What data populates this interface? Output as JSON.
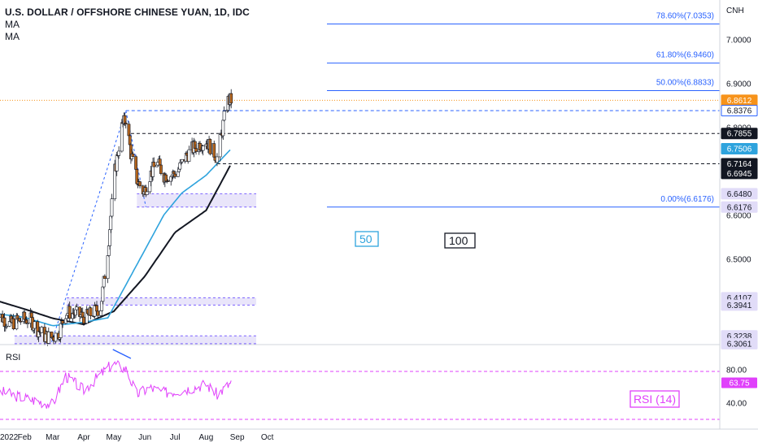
{
  "header": {
    "title": "U.S. DOLLAR / OFFSHORE CHINESE YUAN, 1D, IDC",
    "indicators": [
      "MA",
      "MA"
    ],
    "currency": "CNH"
  },
  "price_axis": {
    "labels": [
      {
        "value": 7.0,
        "text": "7.0000"
      },
      {
        "value": 6.9,
        "text": "6.9000"
      },
      {
        "value": 6.8,
        "text": "6.8000"
      },
      {
        "value": 6.6,
        "text": "6.6000"
      },
      {
        "value": 6.5,
        "text": "6.5000"
      }
    ],
    "badges": [
      {
        "value": 6.8612,
        "text": "6.8612",
        "bg": "#f7931a",
        "fg": "#ffffff",
        "border": "#f7931a"
      },
      {
        "value": 6.8376,
        "text": "6.8376",
        "bg": "#ffffff",
        "fg": "#131722",
        "border": "#2962ff"
      },
      {
        "value": 6.7855,
        "text": "6.7855",
        "bg": "#131722",
        "fg": "#ffffff",
        "border": "#131722"
      },
      {
        "value": 6.7506,
        "text": "6.7506",
        "bg": "#2ea3dd",
        "fg": "#ffffff",
        "border": "#2ea3dd"
      },
      {
        "value": 6.7164,
        "text": "6.7164",
        "bg": "#131722",
        "fg": "#ffffff",
        "border": "#131722"
      },
      {
        "value": 6.6945,
        "text": "6.6945",
        "bg": "#131722",
        "fg": "#ffffff",
        "border": "#131722"
      },
      {
        "value": 6.648,
        "text": "6.6480",
        "bg": "#e1dcf8",
        "fg": "#131722",
        "border": "#e1dcf8"
      },
      {
        "value": 6.6176,
        "text": "6.6176",
        "bg": "#e1dcf8",
        "fg": "#131722",
        "border": "#e1dcf8"
      },
      {
        "value": 6.4107,
        "text": "6.4107",
        "bg": "#e1dcf8",
        "fg": "#131722",
        "border": "#e1dcf8"
      },
      {
        "value": 6.3941,
        "text": "6.3941",
        "bg": "#e1dcf8",
        "fg": "#131722",
        "border": "#e1dcf8"
      },
      {
        "value": 6.3238,
        "text": "6.3238",
        "bg": "#e1dcf8",
        "fg": "#131722",
        "border": "#e1dcf8"
      },
      {
        "value": 6.3061,
        "text": "6.3061",
        "bg": "#e1dcf8",
        "fg": "#131722",
        "border": "#e1dcf8"
      }
    ]
  },
  "time_axis": [
    "2022",
    "Feb",
    "Mar",
    "Apr",
    "May",
    "Jun",
    "Jul",
    "Aug",
    "Sep",
    "Oct"
  ],
  "fib_levels": [
    {
      "value": 7.0353,
      "text": "78.60%(7.0353)"
    },
    {
      "value": 6.946,
      "text": "61.80%(6.9460)"
    },
    {
      "value": 6.8833,
      "text": "50.00%(6.8833)"
    },
    {
      "value": 6.6176,
      "text": "0.00%(6.6176)"
    }
  ],
  "ma_labels": {
    "ma50": "50",
    "ma100": "100"
  },
  "rsi": {
    "panel_label": "RSI",
    "badge": "RSI (14)",
    "current_text": "63.75",
    "axis": [
      {
        "value": 80,
        "text": "80.00"
      },
      {
        "value": 40,
        "text": "40.00"
      }
    ]
  },
  "colors": {
    "up": "#ffffff",
    "down": "#b5651d",
    "wick": "#131722",
    "ma50": "#2ea3dd",
    "ma100": "#131722",
    "fib": "#2962ff",
    "zone": "#e1dcf8",
    "rsi": "#e040fb",
    "last_price": "#f7931a"
  },
  "chart_data": {
    "type": "candlestick",
    "title": "U.S. DOLLAR / OFFSHORE CHINESE YUAN, 1D, IDC",
    "y_unit": "CNH",
    "ylim": [
      6.28,
      7.07
    ],
    "close_anchors": [
      [
        "2022-01-03",
        6.372
      ],
      [
        "2022-01-10",
        6.365
      ],
      [
        "2022-01-17",
        6.351
      ],
      [
        "2022-01-24",
        6.357
      ],
      [
        "2022-01-31",
        6.362
      ],
      [
        "2022-02-07",
        6.36
      ],
      [
        "2022-02-14",
        6.339
      ],
      [
        "2022-02-21",
        6.323
      ],
      [
        "2022-02-28",
        6.32
      ],
      [
        "2022-03-07",
        6.33
      ],
      [
        "2022-03-14",
        6.378
      ],
      [
        "2022-03-21",
        6.376
      ],
      [
        "2022-03-28",
        6.37
      ],
      [
        "2022-04-04",
        6.367
      ],
      [
        "2022-04-11",
        6.378
      ],
      [
        "2022-04-18",
        6.39
      ],
      [
        "2022-04-25",
        6.52
      ],
      [
        "2022-05-02",
        6.7
      ],
      [
        "2022-05-09",
        6.8
      ],
      [
        "2022-05-13",
        6.82
      ],
      [
        "2022-05-18",
        6.74
      ],
      [
        "2022-05-24",
        6.68
      ],
      [
        "2022-05-31",
        6.65
      ],
      [
        "2022-06-06",
        6.69
      ],
      [
        "2022-06-13",
        6.72
      ],
      [
        "2022-06-20",
        6.69
      ],
      [
        "2022-06-27",
        6.69
      ],
      [
        "2022-07-04",
        6.7
      ],
      [
        "2022-07-11",
        6.73
      ],
      [
        "2022-07-18",
        6.75
      ],
      [
        "2022-07-25",
        6.76
      ],
      [
        "2022-08-01",
        6.77
      ],
      [
        "2022-08-08",
        6.745
      ],
      [
        "2022-08-12",
        6.73
      ],
      [
        "2022-08-16",
        6.78
      ],
      [
        "2022-08-19",
        6.82
      ],
      [
        "2022-08-23",
        6.86
      ],
      [
        "2022-08-26",
        6.8612
      ]
    ],
    "ma50_anchors": [
      [
        "2022-01-03",
        6.375
      ],
      [
        "2022-02-01",
        6.366
      ],
      [
        "2022-03-01",
        6.347
      ],
      [
        "2022-04-01",
        6.355
      ],
      [
        "2022-04-25",
        6.365
      ],
      [
        "2022-05-13",
        6.44
      ],
      [
        "2022-06-01",
        6.52
      ],
      [
        "2022-06-20",
        6.6
      ],
      [
        "2022-07-08",
        6.65
      ],
      [
        "2022-08-01",
        6.69
      ],
      [
        "2022-08-26",
        6.7506
      ]
    ],
    "ma100_anchors": [
      [
        "2022-01-03",
        6.405
      ],
      [
        "2022-02-01",
        6.385
      ],
      [
        "2022-03-01",
        6.364
      ],
      [
        "2022-04-01",
        6.35
      ],
      [
        "2022-05-01",
        6.38
      ],
      [
        "2022-06-01",
        6.46
      ],
      [
        "2022-07-01",
        6.56
      ],
      [
        "2022-08-01",
        6.61
      ],
      [
        "2022-08-26",
        6.7164
      ]
    ],
    "rsi_anchors": [
      [
        "2022-01-03",
        55
      ],
      [
        "2022-01-24",
        48
      ],
      [
        "2022-02-14",
        42
      ],
      [
        "2022-03-01",
        38
      ],
      [
        "2022-03-14",
        72
      ],
      [
        "2022-04-01",
        55
      ],
      [
        "2022-04-25",
        82
      ],
      [
        "2022-05-02",
        86
      ],
      [
        "2022-05-13",
        80
      ],
      [
        "2022-05-24",
        50
      ],
      [
        "2022-06-06",
        58
      ],
      [
        "2022-06-20",
        52
      ],
      [
        "2022-07-08",
        55
      ],
      [
        "2022-08-01",
        62
      ],
      [
        "2022-08-12",
        50
      ],
      [
        "2022-08-26",
        63.75
      ]
    ],
    "zones": [
      {
        "from": "2022-05-24",
        "to": "2022-09-20",
        "low": 6.6176,
        "high": 6.648
      },
      {
        "from": "2022-03-15",
        "to": "2022-09-20",
        "low": 6.3941,
        "high": 6.4107
      },
      {
        "from": "2022-01-22",
        "to": "2022-09-20",
        "low": 6.3061,
        "high": 6.3238
      }
    ],
    "support_lines": [
      {
        "from": "2022-05-13",
        "value": 6.8376,
        "style": "dashed",
        "color": "#2962ff"
      },
      {
        "from": "2022-05-18",
        "value": 6.7855,
        "style": "dashed",
        "color": "#131722"
      },
      {
        "from": "2022-08-12",
        "value": 6.7164,
        "style": "dashed",
        "color": "#131722"
      }
    ]
  }
}
